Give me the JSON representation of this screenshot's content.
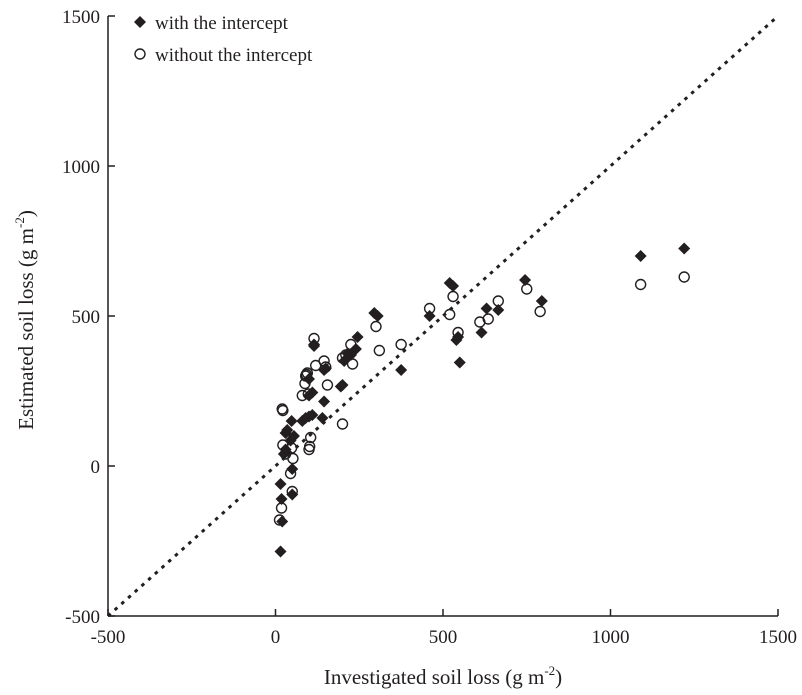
{
  "chart_data": {
    "type": "scatter",
    "xlabel": {
      "prefix": "Investigated soil loss (g m",
      "sup": "-2",
      "suffix": ")"
    },
    "ylabel": {
      "prefix": "Estimated soil loss (g m",
      "sup": "-2",
      "suffix": ")"
    },
    "xlim": [
      -500,
      1500
    ],
    "ylim": [
      -500,
      1500
    ],
    "x_ticks": [
      -500,
      0,
      500,
      1000,
      1500
    ],
    "y_ticks": [
      -500,
      0,
      500,
      1000,
      1500
    ],
    "x_tick_labels": [
      "-500",
      "0",
      "500",
      "1000",
      "1500"
    ],
    "y_tick_labels": [
      "-500",
      "0",
      "500",
      "1000",
      "1500"
    ],
    "grid": false,
    "legend_position": "top-left",
    "reference_line": {
      "style": "dotted",
      "from": [
        -500,
        -500
      ],
      "to": [
        1500,
        1500
      ]
    },
    "series": [
      {
        "name": "with the intercept",
        "marker": "filled-diamond",
        "color": "#231f20",
        "points": [
          [
            15,
            -285
          ],
          [
            20,
            -185
          ],
          [
            18,
            -110
          ],
          [
            15,
            -60
          ],
          [
            25,
            40
          ],
          [
            30,
            55
          ],
          [
            30,
            110
          ],
          [
            35,
            120
          ],
          [
            45,
            85
          ],
          [
            48,
            150
          ],
          [
            50,
            -10
          ],
          [
            50,
            -95
          ],
          [
            55,
            100
          ],
          [
            80,
            150
          ],
          [
            90,
            160
          ],
          [
            100,
            165
          ],
          [
            100,
            235
          ],
          [
            100,
            290
          ],
          [
            110,
            245
          ],
          [
            110,
            170
          ],
          [
            115,
            405
          ],
          [
            115,
            400
          ],
          [
            140,
            160
          ],
          [
            145,
            215
          ],
          [
            145,
            320
          ],
          [
            150,
            325
          ],
          [
            195,
            265
          ],
          [
            200,
            270
          ],
          [
            205,
            350
          ],
          [
            215,
            375
          ],
          [
            225,
            370
          ],
          [
            240,
            390
          ],
          [
            245,
            430
          ],
          [
            295,
            510
          ],
          [
            305,
            500
          ],
          [
            375,
            320
          ],
          [
            460,
            500
          ],
          [
            520,
            610
          ],
          [
            530,
            600
          ],
          [
            540,
            420
          ],
          [
            545,
            430
          ],
          [
            550,
            345
          ],
          [
            615,
            445
          ],
          [
            630,
            525
          ],
          [
            665,
            520
          ],
          [
            745,
            620
          ],
          [
            795,
            550
          ],
          [
            1090,
            700
          ],
          [
            1220,
            725
          ]
        ]
      },
      {
        "name": "without the intercept",
        "marker": "open-circle",
        "color": "#231f20",
        "points": [
          [
            12,
            -180
          ],
          [
            18,
            -140
          ],
          [
            20,
            190
          ],
          [
            22,
            185
          ],
          [
            22,
            70
          ],
          [
            30,
            40
          ],
          [
            45,
            -25
          ],
          [
            48,
            60
          ],
          [
            50,
            -85
          ],
          [
            52,
            25
          ],
          [
            80,
            235
          ],
          [
            88,
            275
          ],
          [
            90,
            300
          ],
          [
            92,
            305
          ],
          [
            95,
            310
          ],
          [
            98,
            240
          ],
          [
            100,
            55
          ],
          [
            102,
            65
          ],
          [
            105,
            95
          ],
          [
            115,
            425
          ],
          [
            120,
            335
          ],
          [
            145,
            350
          ],
          [
            150,
            330
          ],
          [
            155,
            270
          ],
          [
            200,
            140
          ],
          [
            200,
            360
          ],
          [
            210,
            370
          ],
          [
            225,
            405
          ],
          [
            230,
            340
          ],
          [
            300,
            465
          ],
          [
            310,
            385
          ],
          [
            375,
            405
          ],
          [
            460,
            525
          ],
          [
            520,
            505
          ],
          [
            530,
            565
          ],
          [
            545,
            445
          ],
          [
            610,
            480
          ],
          [
            635,
            490
          ],
          [
            665,
            550
          ],
          [
            750,
            590
          ],
          [
            790,
            515
          ],
          [
            1090,
            605
          ],
          [
            1220,
            630
          ]
        ]
      }
    ]
  }
}
